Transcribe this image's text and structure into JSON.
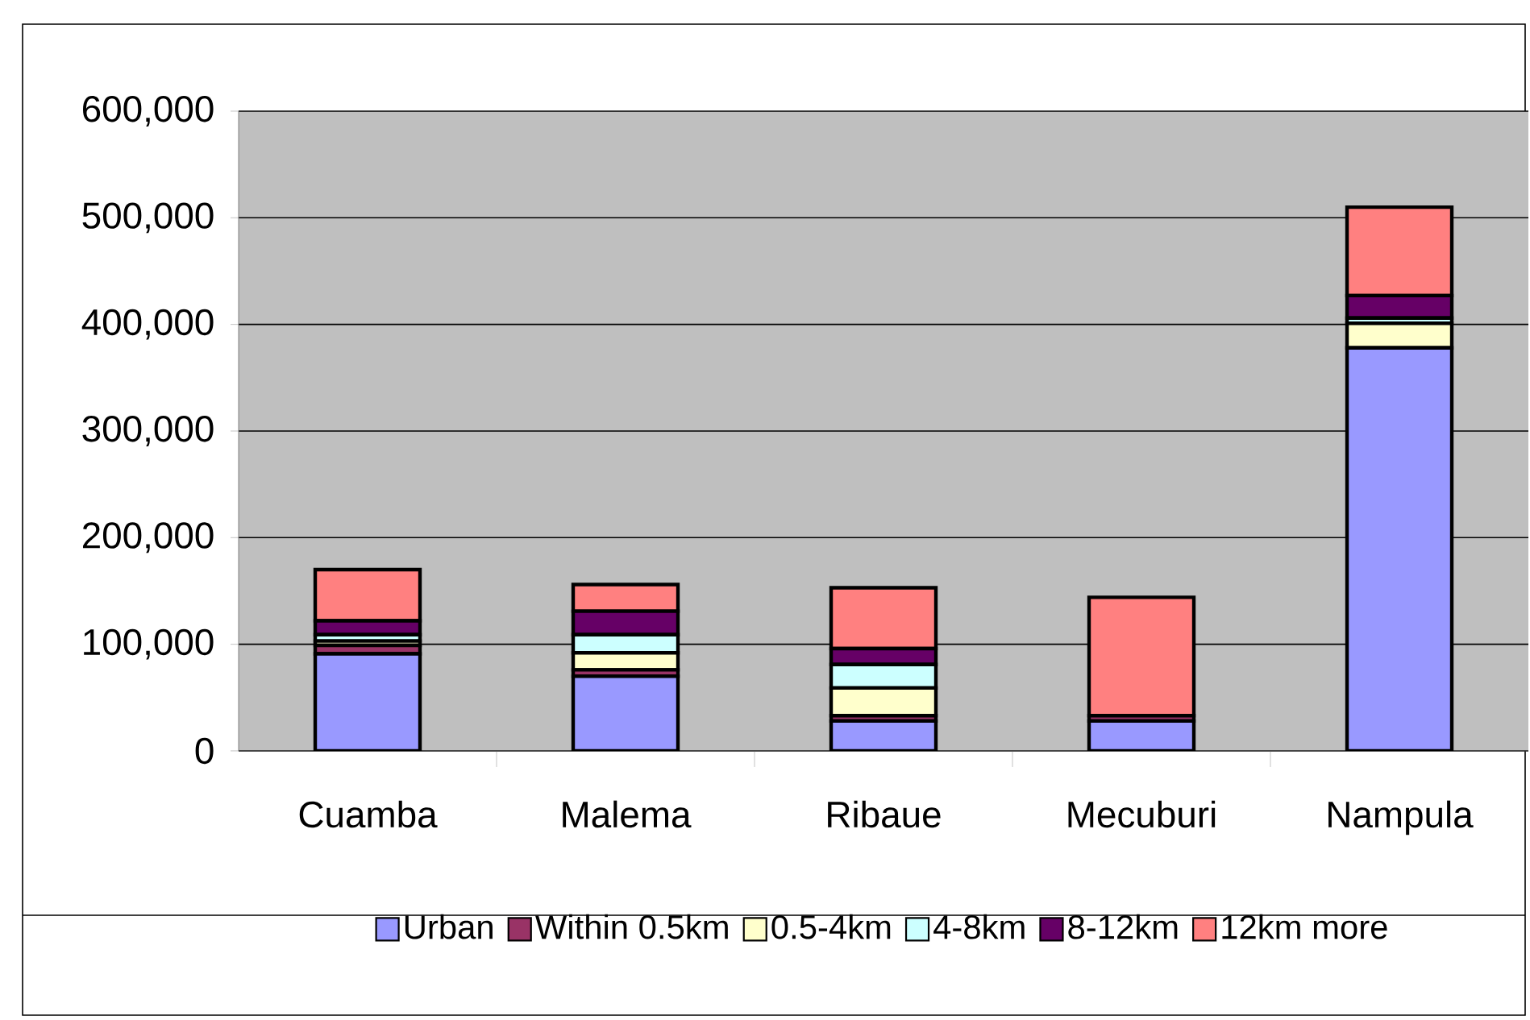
{
  "chart_data": {
    "type": "bar",
    "stacked": true,
    "categories": [
      "Cuamba",
      "Malema",
      "Ribaue",
      "Mecuburi",
      "Nampula"
    ],
    "series": [
      {
        "name": "Urban",
        "color": "#9999ff",
        "values": [
          91000,
          70000,
          28000,
          28000,
          378000
        ]
      },
      {
        "name": "Within 0.5km",
        "color": "#993366",
        "values": [
          8000,
          6000,
          5000,
          5000,
          null
        ]
      },
      {
        "name": "0.5-4km",
        "color": "#ffffcc",
        "values": [
          4000,
          16000,
          26000,
          0,
          23000
        ]
      },
      {
        "name": "4-8km",
        "color": "#ccffff",
        "values": [
          6000,
          17000,
          22000,
          0,
          5000
        ]
      },
      {
        "name": "8-12km",
        "color": "#660066",
        "values": [
          13000,
          22000,
          15000,
          0,
          21000
        ]
      },
      {
        "name": "12km more",
        "color": "#ff8080",
        "values": [
          48000,
          25000,
          57000,
          111000,
          83000
        ]
      }
    ],
    "ylim": [
      0,
      600000
    ],
    "yticks": [
      {
        "value": 0,
        "label": "0"
      },
      {
        "value": 100000,
        "label": "100,000"
      },
      {
        "value": 200000,
        "label": "200,000"
      },
      {
        "value": 300000,
        "label": "300,000"
      },
      {
        "value": 400000,
        "label": "400,000"
      },
      {
        "value": 500000,
        "label": "500,000"
      },
      {
        "value": 600000,
        "label": "600,000"
      }
    ],
    "grid": "y",
    "legend": "bottom"
  }
}
